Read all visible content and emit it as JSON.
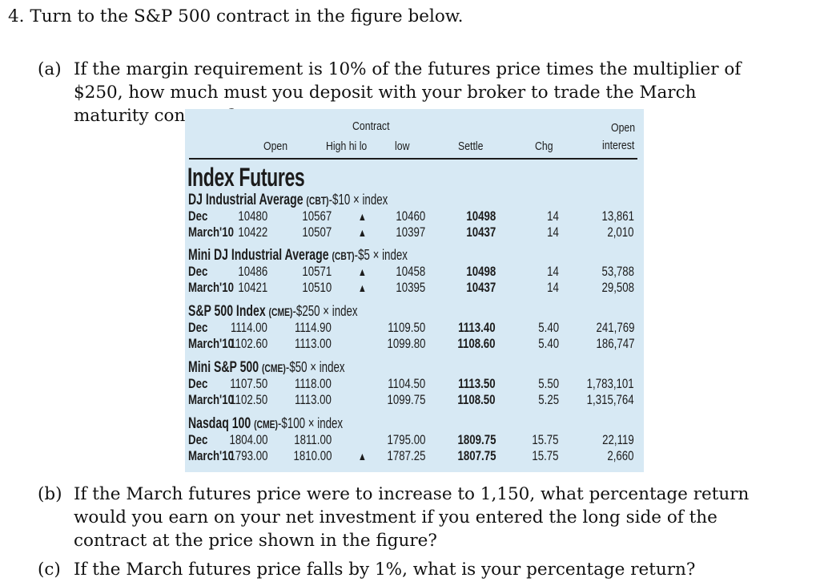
{
  "problem": {
    "number": "4.",
    "intro": "Turn to the S&P 500 contract in the figure below.",
    "parts": [
      {
        "label": "(a)",
        "text": "If the margin requirement is 10% of the futures price times the multiplier of $250, how much must you deposit with your broker to trade the March maturity contract?"
      },
      {
        "label": "(b)",
        "text": "If the March futures price were to increase to 1,150, what percentage return would you earn on your net investment if you entered the long side of the contract at the price shown in the figure?"
      },
      {
        "label": "(c)",
        "text": "If the March futures price falls by 1%, what is your percentage return?"
      }
    ]
  },
  "table": {
    "header": {
      "open": "Open",
      "contract": "Contract",
      "high_hi_lo": "High hi lo",
      "low": "low",
      "settle": "Settle",
      "chg": "Chg",
      "open_interest_1": "Open",
      "open_interest_2": "interest"
    },
    "section_title": "Index Futures",
    "groups": [
      {
        "name": "DJ Industrial Average",
        "exchange": "(CBT)",
        "spec": "-$10 × index",
        "rows": [
          {
            "month": "Dec",
            "open": "10480",
            "high": "10567",
            "arrow": "▲",
            "low": "10460",
            "settle": "10498",
            "chg": "14",
            "oi": "13,861"
          },
          {
            "month": "March'10",
            "open": "10422",
            "high": "10507",
            "arrow": "▲",
            "low": "10397",
            "settle": "10437",
            "chg": "14",
            "oi": "2,010"
          }
        ]
      },
      {
        "name": "Mini DJ Industrial Average",
        "exchange": "(CBT)",
        "spec": "-$5 × index",
        "rows": [
          {
            "month": "Dec",
            "open": "10486",
            "high": "10571",
            "arrow": "▲",
            "low": "10458",
            "settle": "10498",
            "chg": "14",
            "oi": "53,788"
          },
          {
            "month": "March'10",
            "open": "10421",
            "high": "10510",
            "arrow": "▲",
            "low": "10395",
            "settle": "10437",
            "chg": "14",
            "oi": "29,508"
          }
        ]
      },
      {
        "name": "S&P 500 Index",
        "exchange": "(CME)",
        "spec": "-$250 × index",
        "rows": [
          {
            "month": "Dec",
            "open": "1114.00",
            "high": "1114.90",
            "arrow": "",
            "low": "1109.50",
            "settle": "1113.40",
            "chg": "5.40",
            "oi": "241,769"
          },
          {
            "month": "March'10",
            "open": "1102.60",
            "high": "1113.00",
            "arrow": "",
            "low": "1099.80",
            "settle": "1108.60",
            "chg": "5.40",
            "oi": "186,747"
          }
        ]
      },
      {
        "name": "Mini S&P 500",
        "exchange": "(CME)",
        "spec": "-$50 × index",
        "rows": [
          {
            "month": "Dec",
            "open": "1107.50",
            "high": "1118.00",
            "arrow": "",
            "low": "1104.50",
            "settle": "1113.50",
            "chg": "5.50",
            "oi": "1,783,101"
          },
          {
            "month": "March'10",
            "open": "1102.50",
            "high": "1113.00",
            "arrow": "",
            "low": "1099.75",
            "settle": "1108.50",
            "chg": "5.25",
            "oi": "1,315,764"
          }
        ]
      },
      {
        "name": "Nasdaq 100",
        "exchange": "(CME)",
        "spec": "-$100 × index",
        "rows": [
          {
            "month": "Dec",
            "open": "1804.00",
            "high": "1811.00",
            "arrow": "",
            "low": "1795.00",
            "settle": "1809.75",
            "chg": "15.75",
            "oi": "22,119"
          },
          {
            "month": "March'10",
            "open": "1793.00",
            "high": "1810.00",
            "arrow": "▲",
            "low": "1787.25",
            "settle": "1807.75",
            "chg": "15.75",
            "oi": "2,660"
          }
        ]
      }
    ]
  },
  "colors": {
    "panel_background": "#d7e9f4",
    "text": "#111111"
  }
}
